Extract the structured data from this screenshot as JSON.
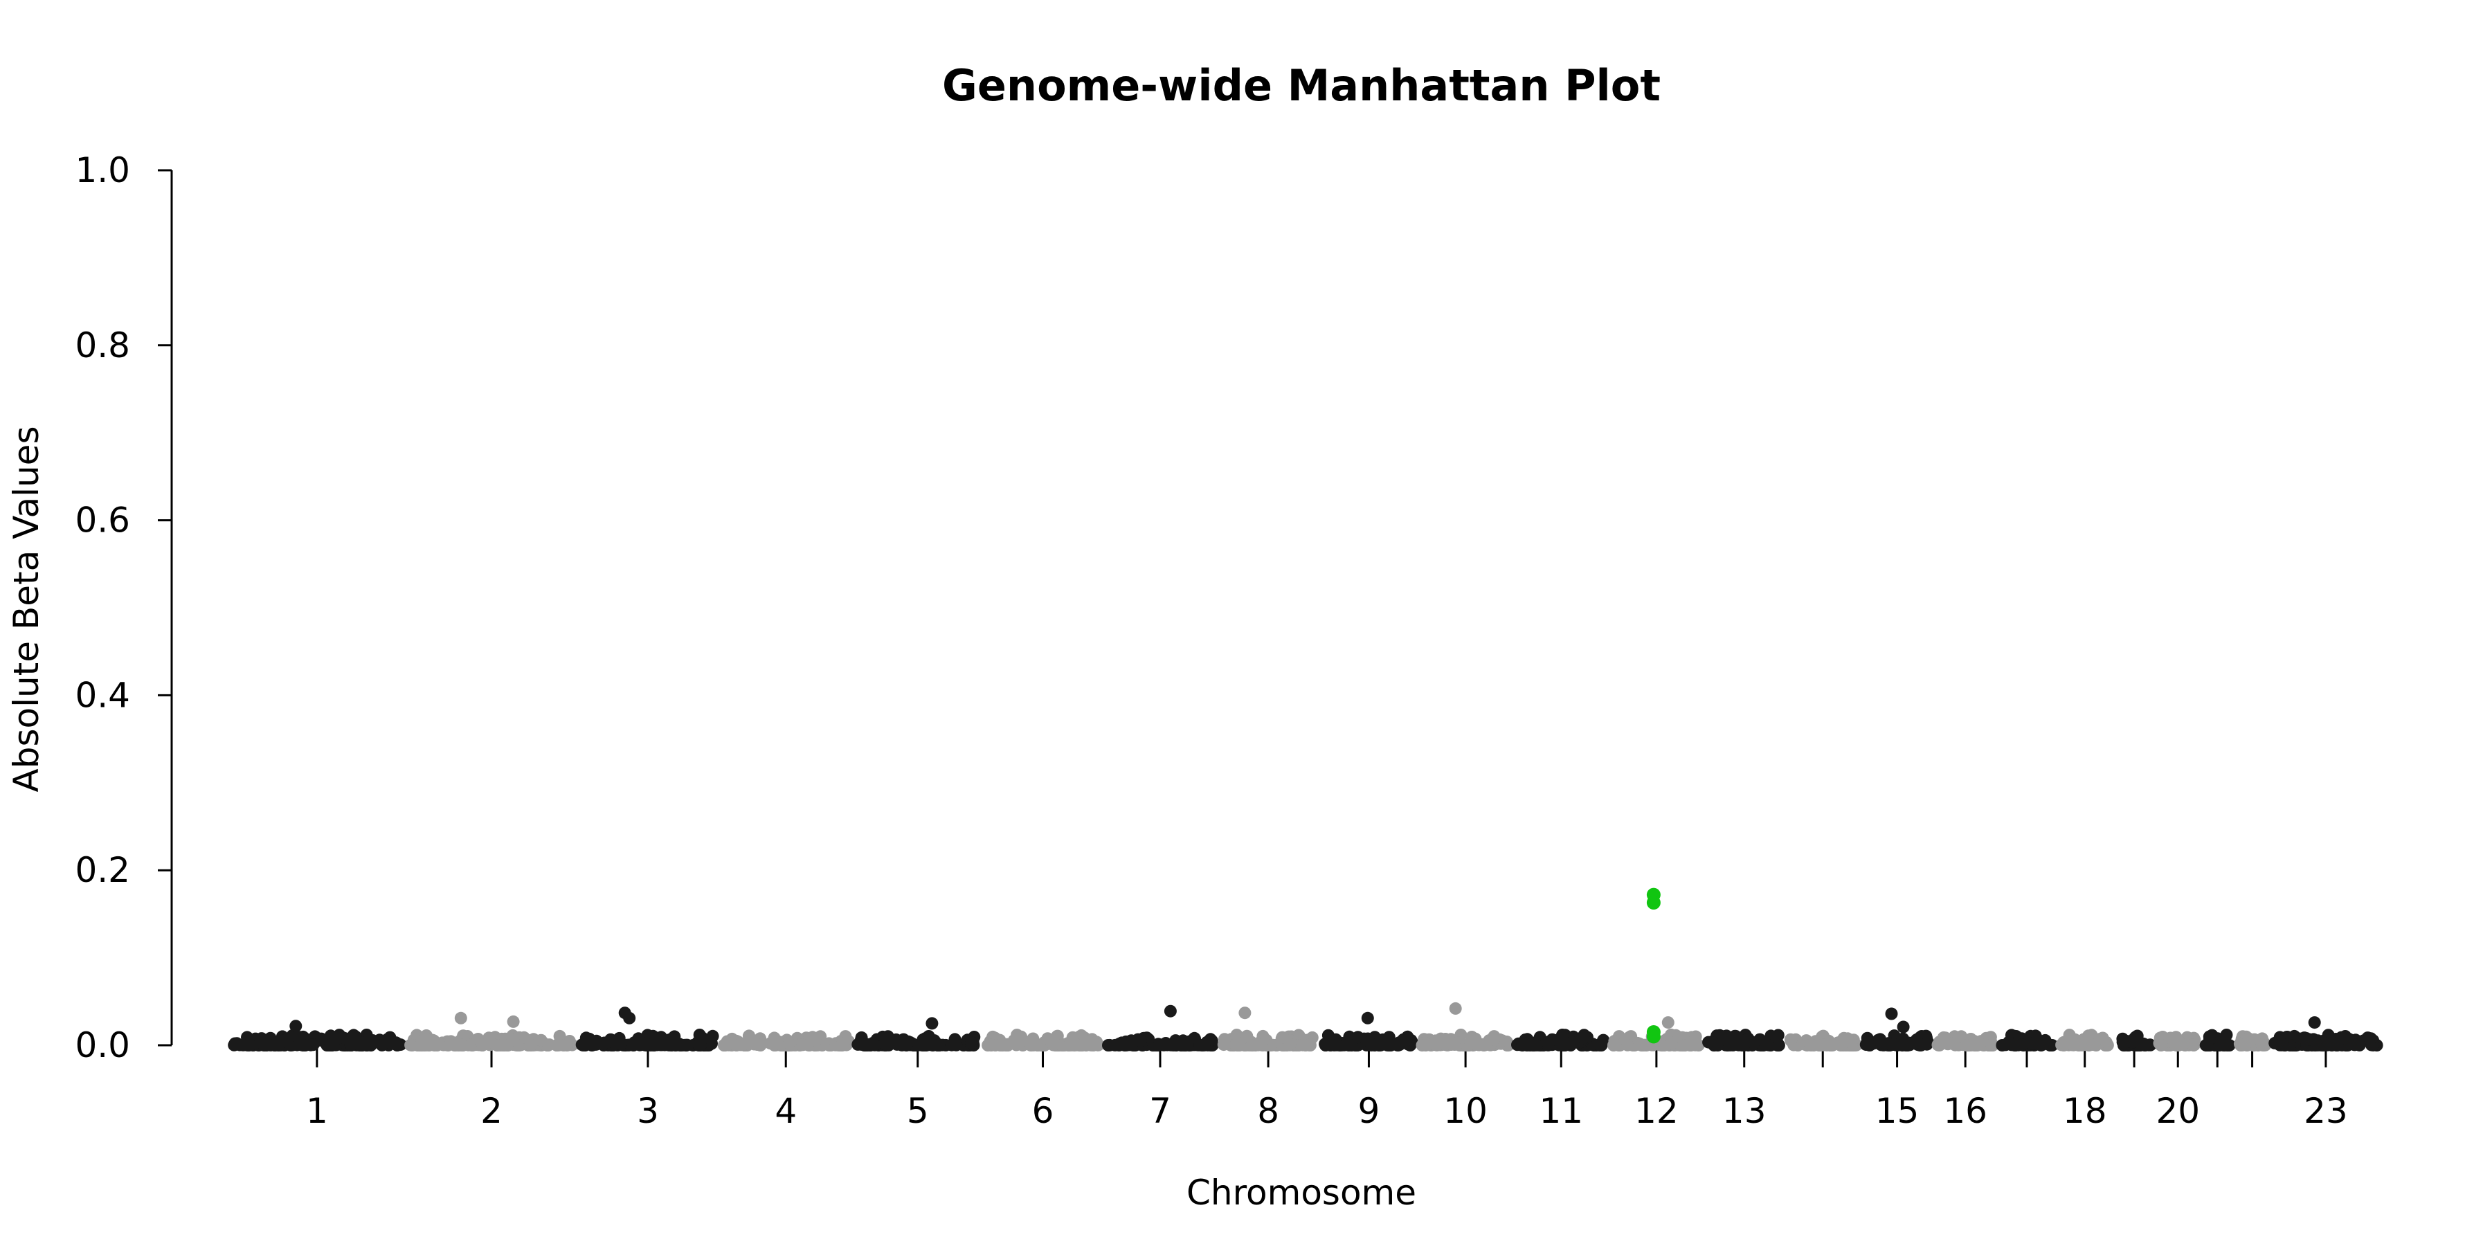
{
  "chart_data": {
    "type": "scatter",
    "title": "Genome-wide Manhattan Plot",
    "xlabel": "Chromosome",
    "ylabel": "Absolute Beta Values",
    "ylim": [
      0,
      1
    ],
    "yticks": [
      "0.0",
      "0.2",
      "0.4",
      "0.6",
      "0.8",
      "1.0"
    ],
    "xticks": [
      "1",
      "2",
      "3",
      "4",
      "5",
      "6",
      "7",
      "8",
      "9",
      "10",
      "11",
      "12",
      "13",
      "15",
      "16",
      "18",
      "20",
      "23"
    ],
    "chromosomes": [
      "1",
      "2",
      "3",
      "4",
      "5",
      "6",
      "7",
      "8",
      "9",
      "10",
      "11",
      "12",
      "13",
      "14",
      "15",
      "16",
      "17",
      "18",
      "19",
      "20",
      "21",
      "22",
      "23"
    ],
    "alternating_colors": [
      "#1a1a1a",
      "#999999"
    ],
    "highlight_color": "#11c511",
    "highlight_chromosome": "12",
    "highlight_points": [
      0.172,
      0.163,
      0.015,
      0.01
    ],
    "notable_points": [
      {
        "chromosome": "1",
        "value": 0.022
      },
      {
        "chromosome": "2",
        "value": 0.031
      },
      {
        "chromosome": "2",
        "value": 0.027
      },
      {
        "chromosome": "3",
        "value": 0.031
      },
      {
        "chromosome": "3",
        "value": 0.037
      },
      {
        "chromosome": "5",
        "value": 0.025
      },
      {
        "chromosome": "7",
        "value": 0.039
      },
      {
        "chromosome": "8",
        "value": 0.037
      },
      {
        "chromosome": "9",
        "value": 0.031
      },
      {
        "chromosome": "10",
        "value": 0.042
      },
      {
        "chromosome": "12",
        "value": 0.026
      },
      {
        "chromosome": "15",
        "value": 0.036
      },
      {
        "chromosome": "15",
        "value": 0.021
      },
      {
        "chromosome": "23",
        "value": 0.026
      }
    ],
    "grid": false,
    "legend": "none"
  }
}
